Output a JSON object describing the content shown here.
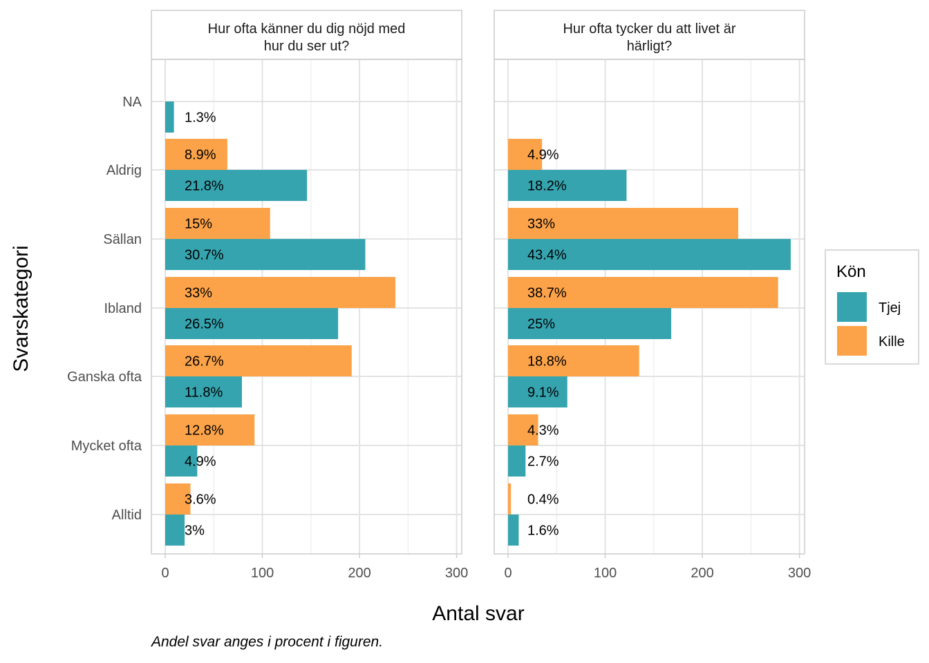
{
  "chart_data": {
    "type": "bar",
    "orientation": "horizontal",
    "categories": [
      "NA",
      "Aldrig",
      "Sällan",
      "Ibland",
      "Ganska ofta",
      "Mycket ofta",
      "Alltid"
    ],
    "xlabel": "Antal svar",
    "ylabel": "Svarskategori",
    "xlim": [
      0,
      300
    ],
    "xticks": [
      "0",
      "100",
      "200",
      "300"
    ],
    "grid": true,
    "legend": {
      "title": "Kön",
      "position": "right",
      "entries": [
        {
          "name": "Tjej",
          "color": "#35A4AF"
        },
        {
          "name": "Kille",
          "color": "#FCA349"
        }
      ]
    },
    "caption": "Andel svar anges i procent i figuren.",
    "panels": [
      {
        "title": "Hur ofta känner du dig nöjd med hur du ser ut?",
        "title_lines": [
          "Hur ofta känner du dig nöjd med",
          "hur du ser ut?"
        ],
        "series": [
          {
            "name": "Tjej",
            "values": [
              9,
              146,
              206,
              178,
              79,
              33,
              20
            ],
            "labels": [
              "1.3%",
              "21.8%",
              "30.7%",
              "26.5%",
              "11.8%",
              "4.9%",
              "3%"
            ]
          },
          {
            "name": "Kille",
            "values": [
              null,
              64,
              108,
              237,
              192,
              92,
              26
            ],
            "labels": [
              null,
              "8.9%",
              "15%",
              "33%",
              "26.7%",
              "12.8%",
              "3.6%"
            ]
          }
        ]
      },
      {
        "title": "Hur ofta tycker du att livet är härligt?",
        "title_lines": [
          "Hur ofta tycker du att livet är",
          "härligt?"
        ],
        "series": [
          {
            "name": "Tjej",
            "values": [
              null,
              122,
              291,
              168,
              61,
              18,
              11
            ],
            "labels": [
              null,
              "18.2%",
              "43.4%",
              "25%",
              "9.1%",
              "2.7%",
              "1.6%"
            ]
          },
          {
            "name": "Kille",
            "values": [
              null,
              35,
              237,
              278,
              135,
              31,
              3
            ],
            "labels": [
              null,
              "4.9%",
              "33%",
              "38.7%",
              "18.8%",
              "4.3%",
              "0.4%"
            ]
          }
        ]
      }
    ]
  }
}
